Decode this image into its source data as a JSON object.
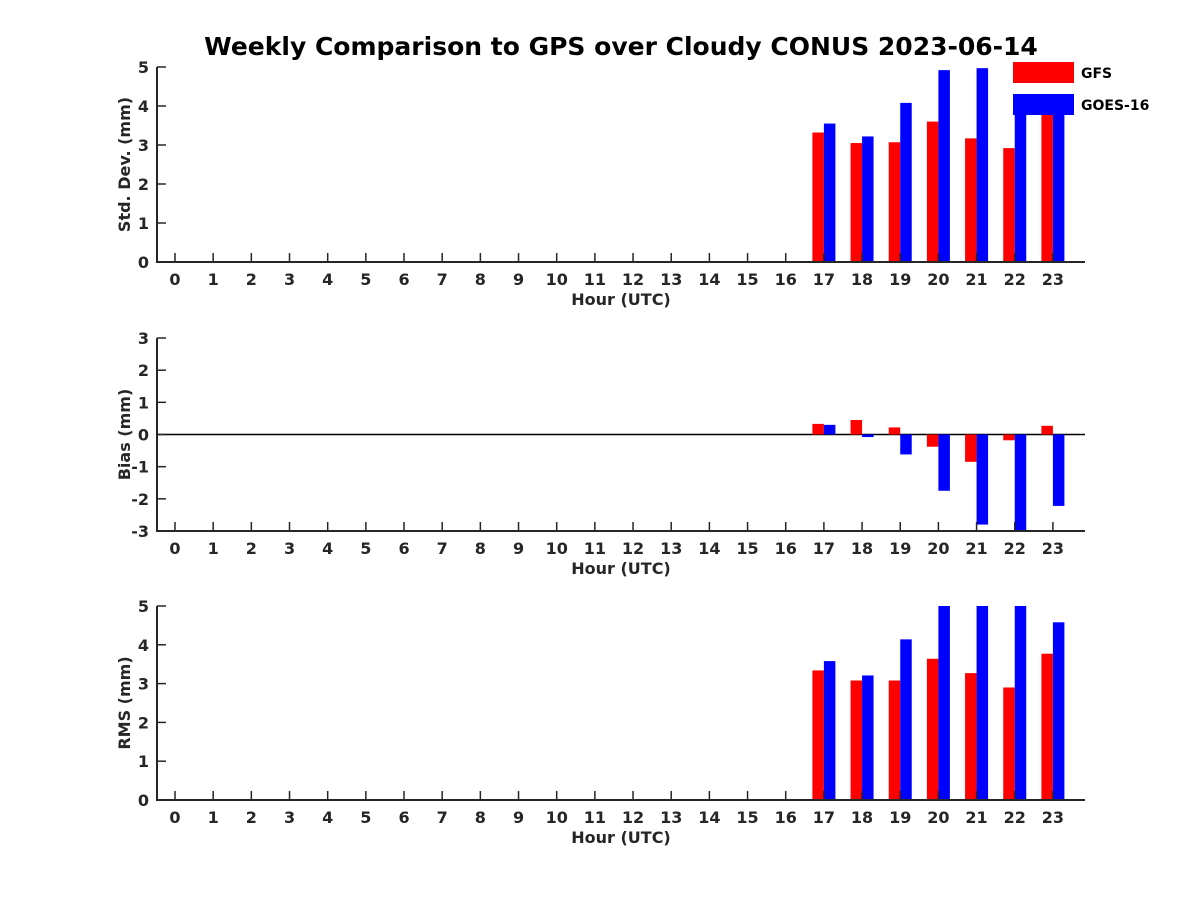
{
  "figure_title": "Weekly Comparison to GPS over Cloudy CONUS 2023-06-14",
  "legend": [
    {
      "label": "GFS",
      "color": "#ff0000"
    },
    {
      "label": "GOES-16",
      "color": "#0000ff"
    }
  ],
  "chart_data": [
    {
      "type": "bar",
      "title": "Weekly Comparison to GPS over Cloudy CONUS 2023-06-14",
      "xlabel": "Hour (UTC)",
      "ylabel": "Std. Dev. (mm)",
      "ylim": [
        0,
        5
      ],
      "yticks": [
        0,
        1,
        2,
        3,
        4,
        5
      ],
      "categories": [
        "0",
        "1",
        "2",
        "3",
        "4",
        "5",
        "6",
        "7",
        "8",
        "9",
        "10",
        "11",
        "12",
        "13",
        "14",
        "15",
        "16",
        "17",
        "18",
        "19",
        "20",
        "21",
        "22",
        "23"
      ],
      "series": [
        {
          "name": "GFS",
          "color": "#ff0000",
          "values": [
            null,
            null,
            null,
            null,
            null,
            null,
            null,
            null,
            null,
            null,
            null,
            null,
            null,
            null,
            null,
            null,
            null,
            3.32,
            3.05,
            3.07,
            3.6,
            3.17,
            2.92,
            3.8
          ]
        },
        {
          "name": "GOES-16",
          "color": "#0000ff",
          "values": [
            null,
            null,
            null,
            null,
            null,
            null,
            null,
            null,
            null,
            null,
            null,
            null,
            null,
            null,
            null,
            null,
            null,
            3.55,
            3.22,
            4.08,
            4.92,
            4.97,
            3.8,
            3.9
          ]
        }
      ],
      "legend": "top-right",
      "grid": false
    },
    {
      "type": "bar",
      "xlabel": "Hour (UTC)",
      "ylabel": "Bias (mm)",
      "ylim": [
        -3,
        3
      ],
      "yticks": [
        -3,
        -2,
        -1,
        0,
        1,
        2,
        3
      ],
      "zero_line": true,
      "categories": [
        "0",
        "1",
        "2",
        "3",
        "4",
        "5",
        "6",
        "7",
        "8",
        "9",
        "10",
        "11",
        "12",
        "13",
        "14",
        "15",
        "16",
        "17",
        "18",
        "19",
        "20",
        "21",
        "22",
        "23"
      ],
      "series": [
        {
          "name": "GFS",
          "color": "#ff0000",
          "values": [
            null,
            null,
            null,
            null,
            null,
            null,
            null,
            null,
            null,
            null,
            null,
            null,
            null,
            null,
            null,
            null,
            null,
            0.33,
            0.45,
            0.22,
            -0.38,
            -0.85,
            -0.18,
            0.27
          ]
        },
        {
          "name": "GOES-16",
          "color": "#0000ff",
          "values": [
            null,
            null,
            null,
            null,
            null,
            null,
            null,
            null,
            null,
            null,
            null,
            null,
            null,
            null,
            null,
            null,
            null,
            0.3,
            -0.08,
            -0.62,
            -1.75,
            -2.8,
            -3.0,
            -2.22
          ]
        }
      ],
      "grid": false
    },
    {
      "type": "bar",
      "xlabel": "Hour (UTC)",
      "ylabel": "RMS (mm)",
      "ylim": [
        0,
        5
      ],
      "yticks": [
        0,
        1,
        2,
        3,
        4,
        5
      ],
      "categories": [
        "0",
        "1",
        "2",
        "3",
        "4",
        "5",
        "6",
        "7",
        "8",
        "9",
        "10",
        "11",
        "12",
        "13",
        "14",
        "15",
        "16",
        "17",
        "18",
        "19",
        "20",
        "21",
        "22",
        "23"
      ],
      "series": [
        {
          "name": "GFS",
          "color": "#ff0000",
          "values": [
            null,
            null,
            null,
            null,
            null,
            null,
            null,
            null,
            null,
            null,
            null,
            null,
            null,
            null,
            null,
            null,
            null,
            3.34,
            3.08,
            3.08,
            3.64,
            3.27,
            2.9,
            3.77
          ]
        },
        {
          "name": "GOES-16",
          "color": "#0000ff",
          "values": [
            null,
            null,
            null,
            null,
            null,
            null,
            null,
            null,
            null,
            null,
            null,
            null,
            null,
            null,
            null,
            null,
            null,
            3.58,
            3.21,
            4.14,
            5.0,
            5.0,
            5.0,
            4.58
          ]
        }
      ],
      "grid": false
    }
  ]
}
